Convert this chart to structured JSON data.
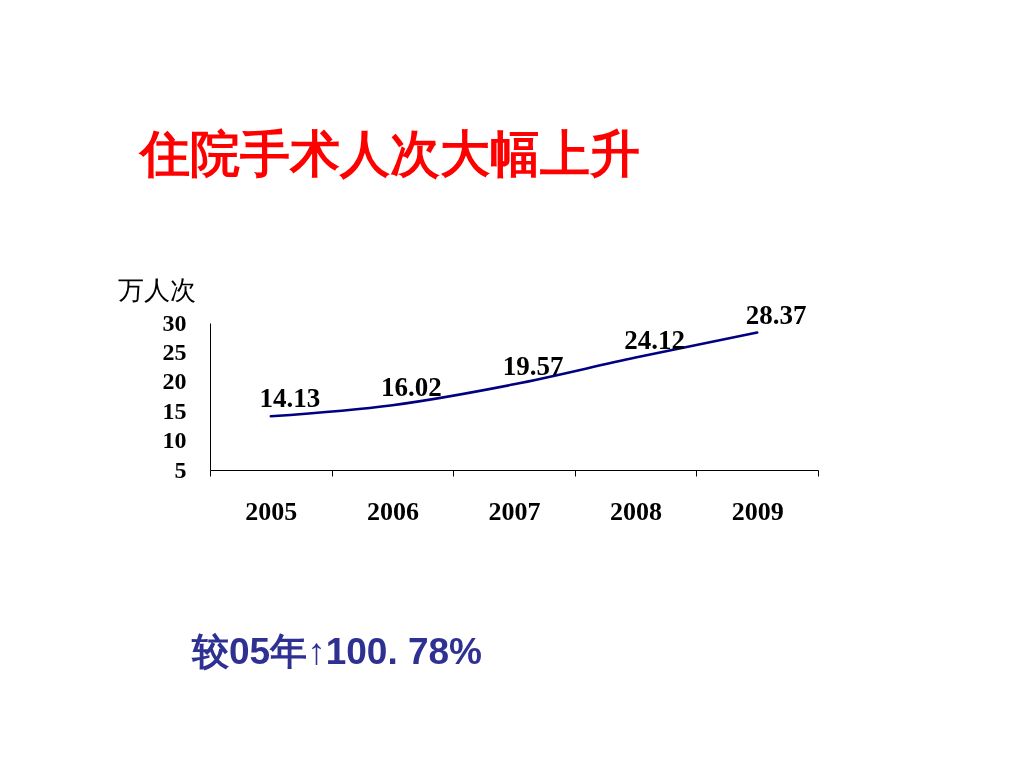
{
  "chart_data": {
    "type": "line",
    "title": "住院手术人次大幅上升",
    "ylabel": "万人次",
    "categories": [
      "2005",
      "2006",
      "2007",
      "2008",
      "2009"
    ],
    "series": [
      {
        "color": "#000080",
        "values": [
          14.13,
          16.02,
          19.57,
          24.12,
          28.37
        ]
      }
    ],
    "ylim": [
      5,
      30
    ],
    "yticks": [
      5,
      10,
      15,
      20,
      25,
      30
    ],
    "grid": false,
    "legend": false,
    "data_labels": true,
    "marker": "none",
    "line_style": "solid",
    "annotations": [
      "较05年↑100. 78%"
    ]
  }
}
